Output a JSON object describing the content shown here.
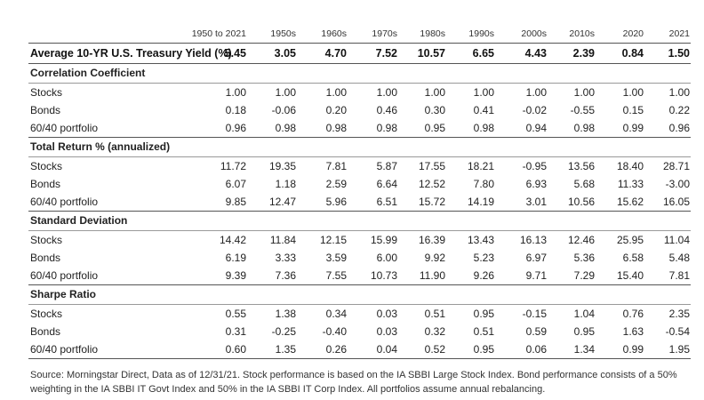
{
  "columns": [
    "1950 to 2021",
    "1950s",
    "1960s",
    "1970s",
    "1980s",
    "1990s",
    "2000s",
    "2010s",
    "2020",
    "2021"
  ],
  "yield_row": {
    "label": "Average 10-YR U.S. Treasury Yield (%)",
    "values": [
      "5.45",
      "3.05",
      "4.70",
      "7.52",
      "10.57",
      "6.65",
      "4.43",
      "2.39",
      "0.84",
      "1.50"
    ]
  },
  "sections": [
    {
      "title": "Correlation Coefficient",
      "rows": [
        {
          "label": "Stocks",
          "values": [
            "1.00",
            "1.00",
            "1.00",
            "1.00",
            "1.00",
            "1.00",
            "1.00",
            "1.00",
            "1.00",
            "1.00"
          ]
        },
        {
          "label": "Bonds",
          "values": [
            "0.18",
            "-0.06",
            "0.20",
            "0.46",
            "0.30",
            "0.41",
            "-0.02",
            "-0.55",
            "0.15",
            "0.22"
          ]
        },
        {
          "label": "60/40 portfolio",
          "values": [
            "0.96",
            "0.98",
            "0.98",
            "0.98",
            "0.95",
            "0.98",
            "0.94",
            "0.98",
            "0.99",
            "0.96"
          ]
        }
      ]
    },
    {
      "title": "Total Return % (annualized)",
      "rows": [
        {
          "label": "Stocks",
          "values": [
            "11.72",
            "19.35",
            "7.81",
            "5.87",
            "17.55",
            "18.21",
            "-0.95",
            "13.56",
            "18.40",
            "28.71"
          ]
        },
        {
          "label": "Bonds",
          "values": [
            "6.07",
            "1.18",
            "2.59",
            "6.64",
            "12.52",
            "7.80",
            "6.93",
            "5.68",
            "11.33",
            "-3.00"
          ]
        },
        {
          "label": "60/40 portfolio",
          "values": [
            "9.85",
            "12.47",
            "5.96",
            "6.51",
            "15.72",
            "14.19",
            "3.01",
            "10.56",
            "15.62",
            "16.05"
          ]
        }
      ]
    },
    {
      "title": "Standard Deviation",
      "rows": [
        {
          "label": "Stocks",
          "values": [
            "14.42",
            "11.84",
            "12.15",
            "15.99",
            "16.39",
            "13.43",
            "16.13",
            "12.46",
            "25.95",
            "11.04"
          ]
        },
        {
          "label": "Bonds",
          "values": [
            "6.19",
            "3.33",
            "3.59",
            "6.00",
            "9.92",
            "5.23",
            "6.97",
            "5.36",
            "6.58",
            "5.48"
          ]
        },
        {
          "label": "60/40 portfolio",
          "values": [
            "9.39",
            "7.36",
            "7.55",
            "10.73",
            "11.90",
            "9.26",
            "9.71",
            "7.29",
            "15.40",
            "7.81"
          ]
        }
      ]
    },
    {
      "title": "Sharpe Ratio",
      "rows": [
        {
          "label": "Stocks",
          "values": [
            "0.55",
            "1.38",
            "0.34",
            "0.03",
            "0.51",
            "0.95",
            "-0.15",
            "1.04",
            "0.76",
            "2.35"
          ]
        },
        {
          "label": "Bonds",
          "values": [
            "0.31",
            "-0.25",
            "-0.40",
            "0.03",
            "0.32",
            "0.51",
            "0.59",
            "0.95",
            "1.63",
            "-0.54"
          ]
        },
        {
          "label": "60/40 portfolio",
          "values": [
            "0.60",
            "1.35",
            "0.26",
            "0.04",
            "0.52",
            "0.95",
            "0.06",
            "1.34",
            "0.99",
            "1.95"
          ]
        }
      ]
    }
  ],
  "source_note": "Source: Morningstar Direct, Data as of 12/31/21. Stock performance is based on the IA SBBI Large Stock Index. Bond performance consists of a 50% weighting in the IA SBBI IT Govt Index and 50% in the IA SBBI IT Corp Index. All portfolios assume annual rebalancing."
}
